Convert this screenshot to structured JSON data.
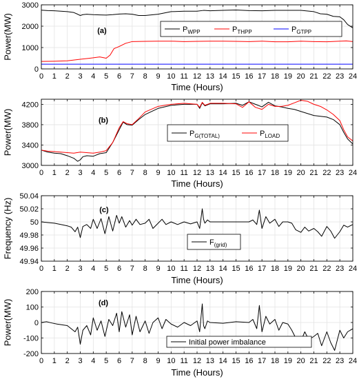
{
  "chart_data": [
    {
      "type": "line",
      "panel_label": "(a)",
      "xlabel": "Time (Hours)",
      "ylabel": "Power(MW)",
      "xlim": [
        0,
        24
      ],
      "ylim": [
        0,
        3000
      ],
      "xticks": [
        "0",
        "1",
        "2",
        "3",
        "4",
        "5",
        "6",
        "7",
        "8",
        "9",
        "10",
        "11",
        "12",
        "13",
        "14",
        "15",
        "16",
        "17",
        "18",
        "19",
        "20",
        "21",
        "22",
        "23",
        "24"
      ],
      "yticks": [
        "0",
        "1000",
        "2000",
        "3000"
      ],
      "grid": true,
      "legend_position": "top-right",
      "series": [
        {
          "name": "P_WPP",
          "main": "P",
          "sub": "WPP",
          "color": "#000000",
          "x": [
            0,
            0.5,
            1,
            1.5,
            2,
            2.5,
            2.8,
            3,
            3.2,
            3.5,
            4,
            4.5,
            5,
            5.5,
            6,
            6.5,
            7,
            7.5,
            8,
            9,
            10,
            11,
            12,
            12.5,
            13,
            14,
            15,
            16,
            17,
            18,
            19,
            20,
            21,
            21.5,
            22,
            22.5,
            23,
            23.3,
            23.6,
            24
          ],
          "y": [
            2750,
            2730,
            2720,
            2700,
            2680,
            2640,
            2560,
            2500,
            2540,
            2560,
            2540,
            2530,
            2520,
            2540,
            2570,
            2580,
            2560,
            2500,
            2500,
            2560,
            2680,
            2700,
            2700,
            2740,
            2720,
            2740,
            2760,
            2730,
            2720,
            2740,
            2740,
            2740,
            2680,
            2580,
            2560,
            2460,
            2440,
            2300,
            2080,
            1920
          ]
        },
        {
          "name": "P_THPP",
          "main": "P",
          "sub": "THPP",
          "color": "#ff0000",
          "x": [
            0,
            1,
            2,
            3,
            4,
            4.5,
            5,
            5.3,
            5.6,
            6,
            6.5,
            7,
            8,
            9,
            10,
            11,
            12,
            13,
            14,
            15,
            16,
            17,
            18,
            19,
            20,
            21,
            22,
            23,
            23.5,
            24
          ],
          "y": [
            350,
            360,
            380,
            450,
            520,
            560,
            500,
            650,
            950,
            1050,
            1200,
            1280,
            1290,
            1300,
            1300,
            1280,
            1290,
            1300,
            1300,
            1290,
            1280,
            1300,
            1270,
            1270,
            1300,
            1280,
            1270,
            1300,
            1310,
            1280
          ]
        },
        {
          "name": "P_GTPP",
          "main": "P",
          "sub": "GTPP",
          "color": "#0000ff",
          "x": [
            0,
            24
          ],
          "y": [
            220,
            220
          ]
        }
      ]
    },
    {
      "type": "line",
      "panel_label": "(b)",
      "xlabel": "Time (Hours)",
      "ylabel": "Power(MW)",
      "xlim": [
        0,
        24
      ],
      "ylim": [
        3000,
        4300
      ],
      "xticks": [
        "0",
        "1",
        "2",
        "3",
        "4",
        "5",
        "6",
        "7",
        "8",
        "9",
        "10",
        "11",
        "12",
        "13",
        "14",
        "15",
        "16",
        "17",
        "18",
        "19",
        "20",
        "21",
        "22",
        "23",
        "24"
      ],
      "yticks": [
        "3000",
        "3400",
        "3800",
        "4200"
      ],
      "grid": true,
      "legend_position": "center-right",
      "series": [
        {
          "name": "P_G(TOTAL)",
          "main": "P",
          "sub": "G(TOTAL)",
          "color": "#000000",
          "x": [
            0,
            0.5,
            1,
            1.5,
            2,
            2.5,
            2.8,
            3,
            3.2,
            3.5,
            4,
            4.5,
            5,
            5.5,
            6,
            6.3,
            6.6,
            7,
            7.5,
            8,
            9,
            10,
            11,
            12,
            12.2,
            12.4,
            12.6,
            13,
            14,
            15,
            15.5,
            16,
            16.5,
            17,
            17.5,
            18,
            18.5,
            19,
            19.5,
            20,
            21,
            22,
            22.5,
            23,
            23.3,
            23.6,
            24
          ],
          "y": [
            3300,
            3260,
            3240,
            3230,
            3190,
            3140,
            3080,
            3110,
            3170,
            3190,
            3180,
            3230,
            3250,
            3450,
            3700,
            3850,
            3800,
            3790,
            3900,
            4000,
            4120,
            4180,
            4200,
            4200,
            4120,
            4230,
            4170,
            4210,
            4210,
            4220,
            4180,
            4250,
            4200,
            4150,
            4240,
            4170,
            4150,
            4120,
            4100,
            4060,
            3980,
            3950,
            3900,
            3800,
            3650,
            3520,
            3420
          ]
        },
        {
          "name": "P_LOAD",
          "main": "P",
          "sub": "LOAD",
          "color": "#ff0000",
          "x": [
            0,
            0.5,
            1,
            1.5,
            2,
            2.5,
            3,
            3.5,
            4,
            4.5,
            5,
            5.5,
            6,
            6.3,
            6.6,
            7,
            7.5,
            8,
            9,
            10,
            11,
            12,
            12.2,
            12.4,
            12.6,
            13,
            14,
            15,
            15.5,
            16,
            16.5,
            17,
            17.5,
            18,
            18.5,
            19,
            19.5,
            20,
            20.5,
            21,
            21.5,
            22,
            22.5,
            23,
            23.3,
            23.6,
            24
          ],
          "y": [
            3300,
            3280,
            3270,
            3260,
            3250,
            3240,
            3260,
            3250,
            3240,
            3260,
            3290,
            3450,
            3740,
            3860,
            3820,
            3800,
            3920,
            4050,
            4160,
            4200,
            4220,
            4200,
            4140,
            4240,
            4180,
            4220,
            4220,
            4210,
            4140,
            4250,
            4140,
            4100,
            4200,
            4160,
            4160,
            4180,
            4230,
            4280,
            4260,
            4200,
            4160,
            4090,
            4000,
            3880,
            3700,
            3560,
            3480
          ]
        }
      ]
    },
    {
      "type": "line",
      "panel_label": "(c)",
      "xlabel": "Time (Hours)",
      "ylabel": "Frequency (Hz)",
      "xlim": [
        0,
        24
      ],
      "ylim": [
        49.94,
        50.04
      ],
      "xticks": [
        "0",
        "1",
        "2",
        "3",
        "4",
        "5",
        "6",
        "7",
        "8",
        "9",
        "10",
        "11",
        "12",
        "13",
        "14",
        "15",
        "16",
        "17",
        "18",
        "19",
        "20",
        "21",
        "22",
        "23",
        "24"
      ],
      "yticks": [
        "49.94",
        "49.96",
        "49.98",
        "50",
        "50.02",
        "50.04"
      ],
      "grid": true,
      "legend_position": "bottom-center",
      "series": [
        {
          "name": "F_(grid)",
          "main": "F",
          "sub": "(grid)",
          "color": "#000000",
          "x": [
            0,
            0.5,
            1,
            1.5,
            2,
            2.3,
            2.6,
            2.8,
            3,
            3.2,
            3.5,
            3.8,
            4,
            4.3,
            4.6,
            4.9,
            5.2,
            5.5,
            5.8,
            6,
            6.2,
            6.5,
            6.8,
            7,
            7.3,
            7.6,
            8,
            8.3,
            8.6,
            9,
            9.3,
            9.6,
            10,
            10.5,
            11,
            11.5,
            12,
            12.2,
            12.4,
            12.5,
            12.6,
            12.8,
            13,
            14,
            15,
            16,
            16.3,
            16.6,
            16.8,
            17,
            17.3,
            17.6,
            18,
            18.3,
            18.6,
            19,
            19.3,
            19.6,
            20,
            20.3,
            20.6,
            21,
            21.3,
            21.6,
            22,
            22.3,
            22.6,
            23,
            23.3,
            23.6,
            24
          ],
          "y": [
            50.0,
            49.999,
            49.998,
            49.996,
            49.994,
            49.992,
            49.985,
            49.992,
            49.976,
            49.993,
            49.996,
            49.99,
            50.004,
            49.99,
            50.005,
            49.982,
            50.008,
            49.986,
            50.01,
            49.998,
            50.008,
            49.992,
            50.002,
            49.995,
            50.004,
            49.996,
            49.998,
            50.004,
            49.99,
            49.998,
            50.004,
            49.996,
            50.0,
            49.996,
            50.0,
            49.997,
            50.0,
            49.99,
            50.02,
            50.004,
            49.998,
            50.003,
            50.0,
            50.0,
            50.0,
            50.0,
            50.003,
            49.996,
            50.018,
            49.99,
            50.008,
            49.998,
            50.004,
            49.993,
            50.0,
            50.0,
            49.998,
            49.988,
            49.984,
            49.992,
            49.986,
            49.99,
            49.985,
            49.978,
            49.993,
            49.986,
            49.975,
            49.985,
            49.995,
            49.992,
            49.996
          ]
        }
      ]
    },
    {
      "type": "line",
      "panel_label": "(d)",
      "xlabel": "Time (Hours)",
      "ylabel": "Power(MW)",
      "xlim": [
        0,
        24
      ],
      "ylim": [
        -200,
        200
      ],
      "xticks": [
        "0",
        "1",
        "2",
        "3",
        "4",
        "5",
        "6",
        "7",
        "8",
        "9",
        "10",
        "11",
        "12",
        "13",
        "14",
        "15",
        "16",
        "17",
        "18",
        "19",
        "20",
        "21",
        "22",
        "23",
        "24"
      ],
      "yticks": [
        "-200",
        "-100",
        "0",
        "100",
        "200"
      ],
      "grid": true,
      "legend_position": "bottom-center",
      "series": [
        {
          "name": "Initial power imbalance",
          "main": "Initial power imbalance",
          "sub": "",
          "color": "#000000",
          "x": [
            0,
            0.4,
            0.8,
            1.2,
            1.6,
            2,
            2.3,
            2.6,
            2.8,
            3,
            3.2,
            3.5,
            3.8,
            4,
            4.3,
            4.6,
            4.9,
            5.2,
            5.5,
            5.8,
            6,
            6.2,
            6.5,
            6.8,
            7,
            7.3,
            7.6,
            8,
            8.3,
            8.6,
            9,
            9.3,
            9.6,
            10,
            10.5,
            11,
            11.5,
            12,
            12.2,
            12.4,
            12.5,
            12.6,
            12.8,
            13,
            14,
            15,
            16,
            16.3,
            16.6,
            16.8,
            17,
            17.3,
            17.6,
            18,
            18.3,
            18.6,
            19,
            19.3,
            19.6,
            20,
            20.3,
            20.6,
            21,
            21.3,
            21.6,
            22,
            22.3,
            22.6,
            23,
            23.3,
            23.6,
            24
          ],
          "y": [
            0,
            5,
            -3,
            -10,
            -15,
            -20,
            -40,
            -60,
            -30,
            -140,
            -50,
            -20,
            -80,
            30,
            -50,
            10,
            -90,
            20,
            -20,
            60,
            -60,
            70,
            -30,
            50,
            -80,
            40,
            -60,
            10,
            -70,
            0,
            30,
            -40,
            20,
            -10,
            -30,
            0,
            -20,
            10,
            -60,
            120,
            -20,
            -40,
            10,
            0,
            -5,
            5,
            0,
            20,
            -40,
            110,
            -60,
            40,
            -10,
            20,
            -50,
            0,
            -10,
            -50,
            -100,
            -120,
            -60,
            -110,
            -90,
            -70,
            -150,
            -60,
            -130,
            -180,
            -50,
            -100,
            -60,
            -40
          ]
        }
      ]
    }
  ]
}
